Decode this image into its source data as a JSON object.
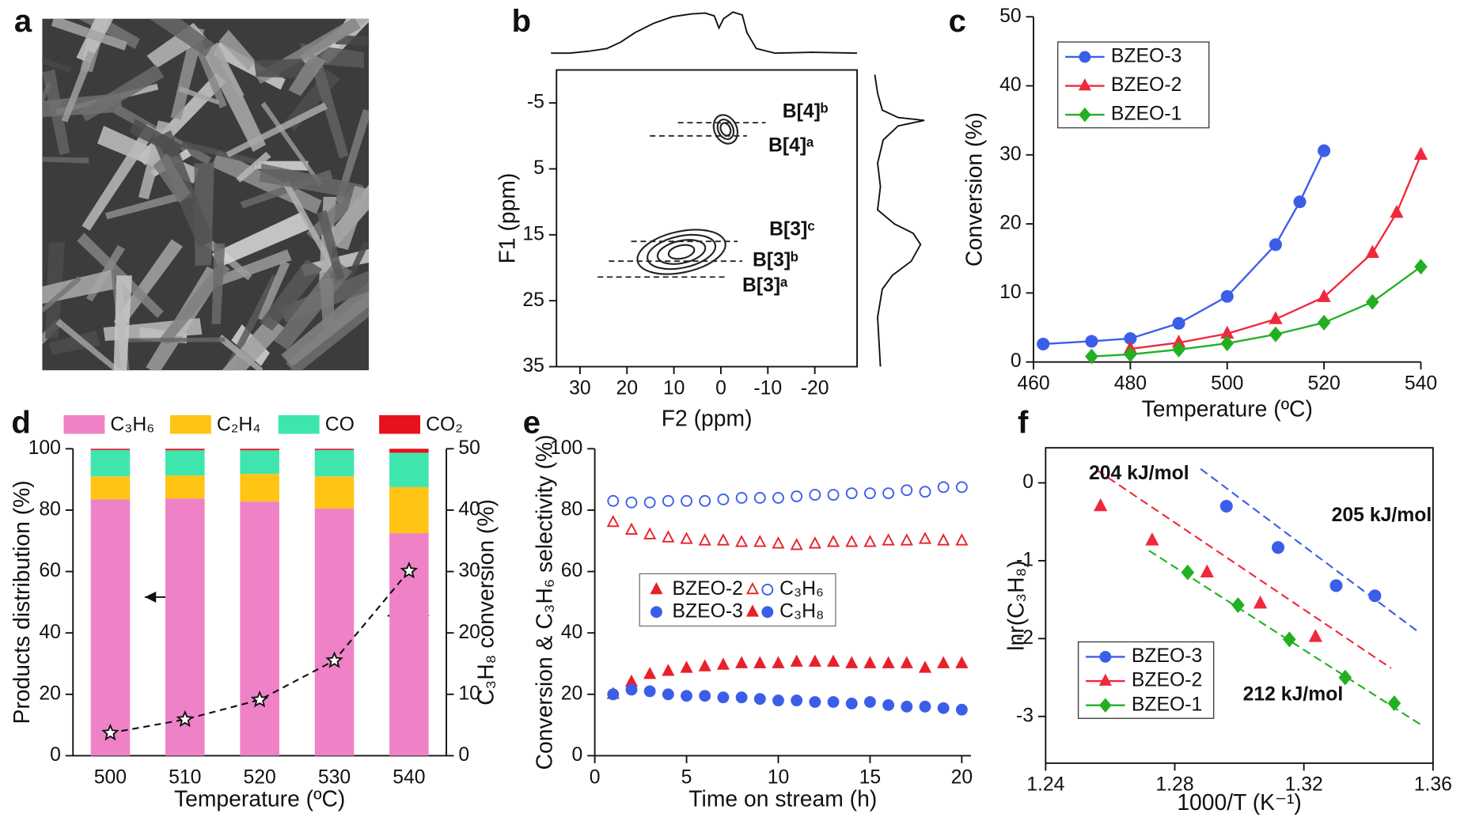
{
  "chart_data": [
    {
      "type": "image",
      "panel": "a"
    },
    {
      "type": "contour",
      "panel": "b",
      "xlabel": "F2 (ppm)",
      "ylabel": "F1 (ppm)",
      "xlim": [
        35,
        -29
      ],
      "ylim": [
        -10,
        35
      ],
      "xticks": [
        30,
        20,
        10,
        0,
        -10,
        -20
      ],
      "yticks": [
        -5,
        5,
        15,
        25,
        35
      ],
      "peaks": [
        {
          "x": -1,
          "y": -1
        },
        {
          "x": 8.4,
          "y": 17.6
        }
      ],
      "annotations": [
        {
          "text": "B[4]ᵇ",
          "y": -2,
          "color": "#f5a36a"
        },
        {
          "text": "B[4]ᵃ",
          "y": 0,
          "color": "#1f2a7a"
        },
        {
          "text": "B[3]ᶜ",
          "y": 16,
          "color": "#6ee04a"
        },
        {
          "text": "B[3]ᵇ",
          "y": 19,
          "color": "#e8202a"
        },
        {
          "text": "B[3]ᵃ",
          "y": 21.4,
          "color": "#7a6ab8"
        }
      ]
    },
    {
      "type": "line",
      "panel": "c",
      "xlabel": "Temperature (ºC)",
      "ylabel": "Conversion (%)",
      "xlim": [
        460,
        540
      ],
      "ylim": [
        0,
        50
      ],
      "xticks": [
        460,
        480,
        500,
        520,
        540
      ],
      "yticks": [
        0,
        10,
        20,
        30,
        40,
        50
      ],
      "legend": "upper left",
      "series": [
        {
          "name": "BZEO-3",
          "color": "#3b5ee8",
          "marker": "circle",
          "x": [
            462,
            472,
            480,
            490,
            500,
            510,
            515,
            520
          ],
          "values": [
            2.6,
            3.0,
            3.4,
            5.6,
            9.5,
            17,
            23.2,
            30.6
          ]
        },
        {
          "name": "BZEO-2",
          "color": "#f0283c",
          "marker": "triangle",
          "x": [
            480,
            490,
            500,
            510,
            520,
            530,
            535,
            540
          ],
          "values": [
            1.9,
            2.8,
            4.1,
            6.2,
            9.4,
            15.8,
            21.6,
            30.0
          ]
        },
        {
          "name": "BZEO-1",
          "color": "#22b022",
          "marker": "diamond",
          "x": [
            472,
            480,
            490,
            500,
            510,
            520,
            530,
            540
          ],
          "values": [
            0.8,
            1.1,
            1.8,
            2.7,
            4.0,
            5.7,
            8.7,
            13.8
          ]
        }
      ]
    },
    {
      "type": "stacked_bar",
      "panel": "d",
      "xlabel": "Temperature (ºC)",
      "ylabel": "Products distribution (%)",
      "y2label": "C₃H₈ conversion (%)",
      "categories": [
        "500",
        "510",
        "520",
        "530",
        "540"
      ],
      "ylim": [
        0,
        100
      ],
      "yticks": [
        0,
        20,
        40,
        60,
        80,
        100
      ],
      "y2lim": [
        0,
        50
      ],
      "y2ticks": [
        0,
        10,
        20,
        30,
        40,
        50
      ],
      "series": [
        {
          "name": "C₃H₆",
          "color": "#ef82c6",
          "values": [
            83.5,
            83.8,
            82.8,
            80.5,
            72.5
          ]
        },
        {
          "name": "C₂H₄",
          "color": "#ffc414",
          "values": [
            7.5,
            7.5,
            9.0,
            10.5,
            15.0
          ]
        },
        {
          "name": "CO",
          "color": "#3ee6ae",
          "values": [
            8.6,
            8.2,
            7.7,
            8.6,
            11.2
          ]
        },
        {
          "name": "CO₂",
          "color": "#e8101c",
          "values": [
            0.4,
            0.5,
            0.5,
            0.4,
            1.3
          ]
        }
      ],
      "conversion": {
        "axis": "y2",
        "marker": "star",
        "values": [
          3.7,
          5.9,
          9.1,
          15.5,
          30.1
        ]
      }
    },
    {
      "type": "scatter",
      "panel": "e",
      "xlabel": "Time on stream (h)",
      "ylabel": "Conversion & C₃H₆ selectivity (%)",
      "xlim": [
        0,
        20.5
      ],
      "ylim": [
        0,
        100
      ],
      "xticks": [
        0,
        5,
        10,
        15,
        20
      ],
      "yticks": [
        0,
        20,
        40,
        60,
        80,
        100
      ],
      "x": [
        1,
        2,
        3,
        4,
        5,
        6,
        7,
        8,
        9,
        10,
        11,
        12,
        13,
        14,
        15,
        16,
        17,
        18,
        19,
        20
      ],
      "legend": [
        "BZEO-2",
        "C₃H₆",
        "BZEO-3",
        "C₃H₈"
      ],
      "series": [
        {
          "color": "#e8202a",
          "marker": "triangle",
          "filled": false,
          "values": [
            76,
            73.5,
            72,
            71,
            70.5,
            70,
            70,
            69.5,
            69.5,
            69,
            68.5,
            69,
            69.5,
            69.5,
            69.5,
            70,
            70,
            70.5,
            70,
            70
          ]
        },
        {
          "color": "#3b5ee8",
          "marker": "circle",
          "filled": false,
          "values": [
            83,
            82.5,
            82.5,
            83,
            83,
            83,
            83.5,
            84,
            84,
            84,
            84.5,
            85,
            85,
            85.5,
            85.5,
            85.5,
            86.5,
            86,
            87.5,
            87.5
          ]
        },
        {
          "color": "#e8202a",
          "marker": "triangle",
          "filled": true,
          "values": [
            20,
            24,
            26.5,
            27.5,
            28.5,
            29,
            29.5,
            30,
            30,
            30,
            30.5,
            30.5,
            30.5,
            30,
            30,
            30,
            30,
            28.5,
            30,
            30
          ]
        },
        {
          "color": "#3b5ee8",
          "marker": "circle",
          "filled": true,
          "values": [
            20,
            21.5,
            21,
            20,
            19.5,
            19.5,
            19,
            19,
            18.5,
            18,
            18,
            17.5,
            17.5,
            17,
            17.5,
            16.5,
            16,
            16,
            15.5,
            15
          ]
        }
      ]
    },
    {
      "type": "line",
      "panel": "f",
      "xlabel": "1000/T (K⁻¹)",
      "ylabel": "lnr(C₃H₈)",
      "xlim": [
        1.24,
        1.36
      ],
      "ylim": [
        -3.6,
        0.45
      ],
      "xticks": [
        1.24,
        1.28,
        1.32,
        1.36
      ],
      "yticks": [
        0,
        -1,
        -2,
        -3
      ],
      "legend": "lower left",
      "series": [
        {
          "name": "BZEO-3",
          "color": "#3b5ee8",
          "marker": "circle",
          "x": [
            1.296,
            1.312,
            1.33,
            1.342
          ],
          "values": [
            -0.3,
            -0.83,
            -1.32,
            -1.45
          ],
          "fit_x": [
            1.288,
            1.355
          ],
          "fit_values": [
            0.18,
            -1.9
          ]
        },
        {
          "name": "BZEO-2",
          "color": "#f0283c",
          "marker": "triangle",
          "x": [
            1.257,
            1.273,
            1.29,
            1.3065,
            1.3236
          ],
          "values": [
            -0.3,
            -0.74,
            -1.15,
            -1.55,
            -1.98
          ],
          "fit_x": [
            1.256,
            1.347
          ],
          "fit_values": [
            0.16,
            -2.38
          ]
        },
        {
          "name": "BZEO-1",
          "color": "#22b022",
          "marker": "diamond",
          "x": [
            1.284,
            1.2996,
            1.3155,
            1.3328,
            1.348
          ],
          "values": [
            -1.15,
            -1.57,
            -2.01,
            -2.5,
            -2.83
          ],
          "fit_x": [
            1.272,
            1.356
          ],
          "fit_values": [
            -0.87,
            -3.1
          ]
        }
      ],
      "annotations": [
        {
          "text": "204 kJ/mol",
          "color": "#f0283c"
        },
        {
          "text": "205 kJ/mol",
          "color": "#3b5ee8"
        },
        {
          "text": "212 kJ/mol",
          "color": "#22b022"
        }
      ]
    }
  ]
}
